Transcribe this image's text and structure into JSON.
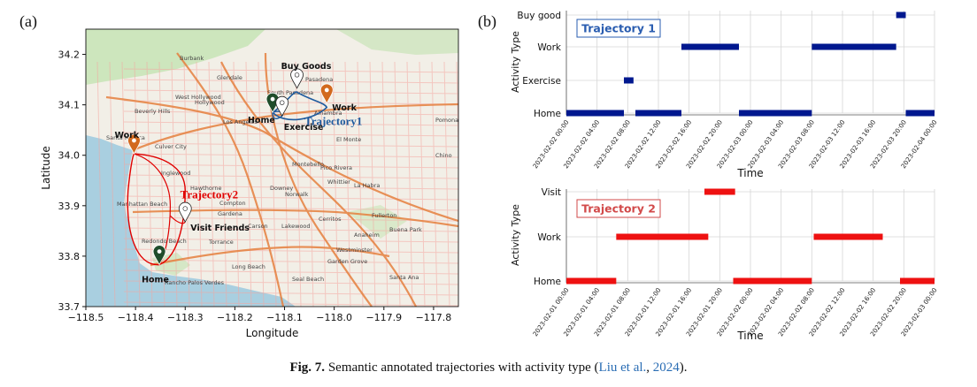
{
  "panel_a_label": "(a)",
  "panel_b_label": "(b)",
  "caption": {
    "fig": "Fig. 7.",
    "text_before": " Semantic annotated trajectories with activity type (",
    "cite_author": "Liu et al.",
    "between": ", ",
    "cite_year": "2024",
    "text_after": ")."
  },
  "colors": {
    "trajectory1": "#00188f",
    "trajectory2": "#ee1111",
    "map_land": "#f2efe7",
    "map_water": "#a9cfe0",
    "map_green": "#c9e4b8",
    "road": "#f4a6a0",
    "freeway": "#e6803e",
    "label_box_1": "#2a5db0",
    "label_box_2": "#d24a4a"
  },
  "chart_data": [
    {
      "type": "map",
      "panel": "(a)",
      "xlabel": "Longitude",
      "ylabel": "Latitude",
      "xlim": [
        -118.5,
        -117.75
      ],
      "ylim": [
        33.7,
        34.25
      ],
      "xticks": [
        -118.5,
        -118.4,
        -118.3,
        -118.2,
        -118.1,
        -118.0,
        -117.9,
        -117.8
      ],
      "xtick_labels": [
        "−118.5",
        "−118.4",
        "−118.3",
        "−118.2",
        "−118.1",
        "−118.0",
        "−117.9",
        "−117.8"
      ],
      "yticks": [
        33.7,
        33.8,
        33.9,
        34.0,
        34.1,
        34.2
      ],
      "ytick_labels": [
        "33.7",
        "33.8",
        "33.9",
        "34.0",
        "34.1",
        "34.2"
      ],
      "trajectories": [
        {
          "name": "Trajectory1",
          "color": "#1e5a9e"
        },
        {
          "name": "Trajectory2",
          "color": "#e00000"
        }
      ],
      "places": [
        {
          "label": "Buy Goods",
          "lon": -118.075,
          "lat": 34.133,
          "marker": "white",
          "trajectory": 1
        },
        {
          "label": "Work",
          "lon": -118.015,
          "lat": 34.103,
          "marker": "orange",
          "trajectory": 1
        },
        {
          "label": "Home",
          "lon": -118.124,
          "lat": 34.085,
          "marker": "green",
          "trajectory": 1
        },
        {
          "label": "Exercise",
          "lon": -118.105,
          "lat": 34.078,
          "marker": "white",
          "trajectory": 1
        },
        {
          "label": "Work",
          "lon": -118.403,
          "lat": 34.003,
          "marker": "orange",
          "trajectory": 2
        },
        {
          "label": "Visit Friends",
          "lon": -118.3,
          "lat": 33.868,
          "marker": "white",
          "trajectory": 2
        },
        {
          "label": "Home",
          "lon": -118.352,
          "lat": 33.783,
          "marker": "green",
          "trajectory": 2
        }
      ],
      "map_labels": [
        "Burbank",
        "Glendale",
        "Pasadena",
        "South Pasadena",
        "Alhambra",
        "Beverly Hills",
        "West Hollywood",
        "Hollywood",
        "Los Angeles",
        "Santa Monica",
        "Culver City",
        "Inglewood",
        "Hawthorne",
        "Manhattan Beach",
        "Torrance",
        "Redondo Beach",
        "Carson",
        "Long Beach",
        "Lakewood",
        "Downey",
        "Norwalk",
        "Whittier",
        "La Habra",
        "Fullerton",
        "Anaheim",
        "Garden Grove",
        "Santa Ana",
        "Westminster",
        "Seal Beach",
        "Cerritos",
        "Pomona",
        "Chino",
        "El Monte",
        "Compton",
        "Gardena",
        "Montebello",
        "Pico Rivera",
        "Buena Park",
        "Rancho Palos Verdes"
      ]
    },
    {
      "type": "timeline",
      "panel": "(b)",
      "legend": "Trajectory 1",
      "xlabel": "Time",
      "ylabel": "Activity Type",
      "categories": [
        "Home",
        "Exercise",
        "Work",
        "Buy good"
      ],
      "xlim": [
        "2023-02-02 00:00",
        "2023-02-04 00:00"
      ],
      "tick_labels": [
        "2023-02-02 00:00",
        "2023-02-02 04:00",
        "2023-02-02 08:00",
        "2023-02-02 12:00",
        "2023-02-02 16:00",
        "2023-02-02 20:00",
        "2023-02-03 00:00",
        "2023-02-03 04:00",
        "2023-02-03 08:00",
        "2023-02-03 12:00",
        "2023-02-03 16:00",
        "2023-02-03 20:00",
        "2023-02-04 00:00"
      ],
      "segments": [
        {
          "activity": "Home",
          "start": "2023-02-02 00:00",
          "end": "2023-02-02 07:30"
        },
        {
          "activity": "Exercise",
          "start": "2023-02-02 07:30",
          "end": "2023-02-02 08:45"
        },
        {
          "activity": "Home",
          "start": "2023-02-02 09:00",
          "end": "2023-02-02 15:00"
        },
        {
          "activity": "Work",
          "start": "2023-02-02 15:00",
          "end": "2023-02-02 22:30"
        },
        {
          "activity": "Home",
          "start": "2023-02-02 22:30",
          "end": "2023-02-03 08:00"
        },
        {
          "activity": "Work",
          "start": "2023-02-03 08:00",
          "end": "2023-02-03 19:00"
        },
        {
          "activity": "Buy good",
          "start": "2023-02-03 19:00",
          "end": "2023-02-03 20:15"
        },
        {
          "activity": "Home",
          "start": "2023-02-03 20:15",
          "end": "2023-02-04 00:00"
        }
      ]
    },
    {
      "type": "timeline",
      "panel": "(b)",
      "legend": "Trajectory 2",
      "xlabel": "Time",
      "ylabel": "Activity Type",
      "categories": [
        "Home",
        "Work",
        "Visit"
      ],
      "xlim": [
        "2023-02-01 00:00",
        "2023-02-03 00:00"
      ],
      "tick_labels": [
        "2023-02-01 00:00",
        "2023-02-01 04:00",
        "2023-02-01 08:00",
        "2023-02-01 12:00",
        "2023-02-01 16:00",
        "2023-02-01 20:00",
        "2023-02-02 00:00",
        "2023-02-02 04:00",
        "2023-02-02 08:00",
        "2023-02-02 12:00",
        "2023-02-02 16:00",
        "2023-02-02 20:00",
        "2023-02-03 00:00"
      ],
      "segments": [
        {
          "activity": "Home",
          "start": "2023-02-01 00:00",
          "end": "2023-02-01 06:30"
        },
        {
          "activity": "Work",
          "start": "2023-02-01 06:30",
          "end": "2023-02-01 18:30"
        },
        {
          "activity": "Visit",
          "start": "2023-02-01 18:00",
          "end": "2023-02-01 22:00"
        },
        {
          "activity": "Home",
          "start": "2023-02-01 21:45",
          "end": "2023-02-02 08:00"
        },
        {
          "activity": "Work",
          "start": "2023-02-02 08:15",
          "end": "2023-02-02 17:15"
        },
        {
          "activity": "Home",
          "start": "2023-02-02 19:30",
          "end": "2023-02-03 00:00"
        }
      ]
    }
  ]
}
